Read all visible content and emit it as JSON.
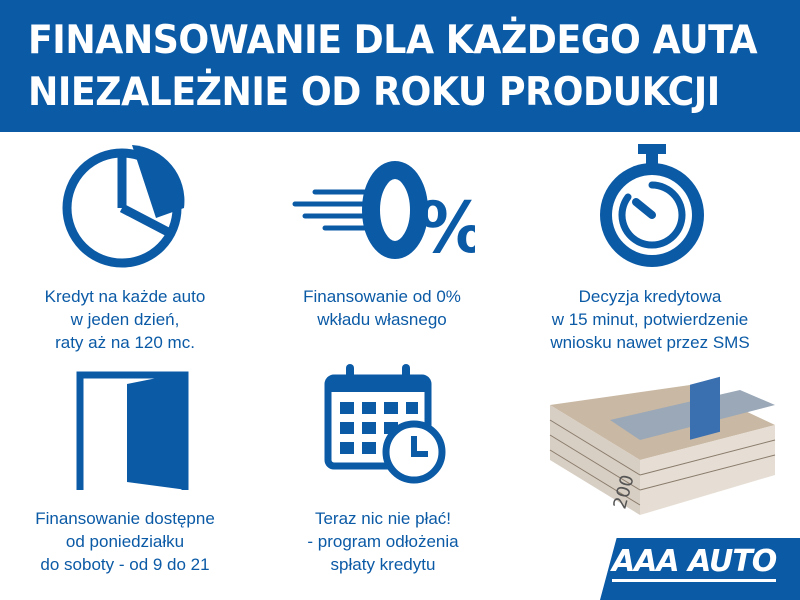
{
  "header": {
    "line1": "FINANSOWANIE DLA KAŻDEGO AUTA",
    "line2": "NIEZALEŻNIE OD ROKU PRODUKCJI"
  },
  "features": [
    {
      "icon": "pie-chart-icon",
      "lines": [
        "Kredyt na każde auto",
        "w jeden dzień,",
        "raty aż na 120 mc."
      ]
    },
    {
      "icon": "zero-percent-icon",
      "lines": [
        "Finansowanie od 0%",
        "wkładu własnego"
      ]
    },
    {
      "icon": "stopwatch-icon",
      "lines": [
        "Decyzja kredytowa",
        "w 15 minut, potwierdzenie",
        "wniosku nawet przez SMS"
      ]
    },
    {
      "icon": "door-icon",
      "lines": [
        "Finansowanie dostępne",
        "od poniedziałku",
        "do soboty - od 9 do 21"
      ]
    },
    {
      "icon": "calendar-clock-icon",
      "lines": [
        "Teraz nic nie płać!",
        "- program odłożenia",
        "spłaty kredytu"
      ]
    },
    {
      "icon": "money-stack-image"
    }
  ],
  "logo": {
    "text": "AAA AUTO"
  },
  "colors": {
    "brand": "#0b5aa6"
  }
}
